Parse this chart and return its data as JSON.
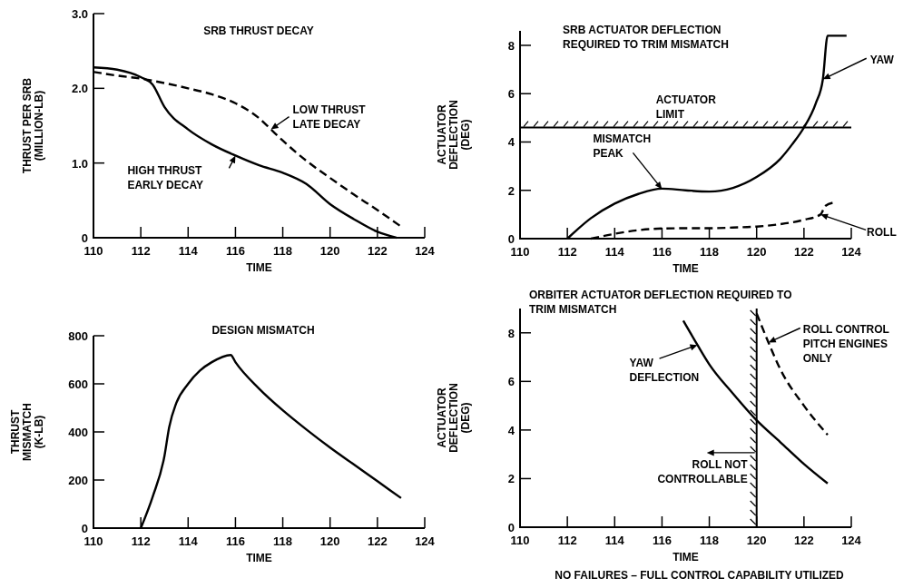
{
  "chart_data": [
    {
      "type": "line",
      "title": "SRB THRUST DECAY",
      "xlabel": "TIME",
      "ylabel": "THRUST PER SRB\n(MILLION-LB)",
      "xlim": [
        110,
        124
      ],
      "xticks": [
        110,
        112,
        114,
        116,
        118,
        120,
        122,
        124
      ],
      "ylim": [
        0,
        3
      ],
      "yticks": [
        0,
        {
          "value": 1,
          "label": "1.0"
        },
        {
          "value": 2,
          "label": "2.0"
        },
        {
          "value": 3,
          "label": "3.0"
        }
      ],
      "series": [
        {
          "name": "HIGH THRUST\nEARLY DECAY",
          "color": "#000000",
          "line_style": "solid",
          "x": [
            110,
            111,
            112,
            112.5,
            113,
            114,
            115,
            116,
            117,
            118,
            119,
            120,
            121,
            122,
            122.8
          ],
          "values": [
            2.28,
            2.25,
            2.15,
            2.05,
            1.75,
            1.45,
            1.25,
            1.1,
            0.97,
            0.87,
            0.72,
            0.45,
            0.25,
            0.08,
            0
          ]
        },
        {
          "name": "LOW THRUST\nLATE DECAY",
          "color": "#000000",
          "line_style": "dashed",
          "x": [
            110,
            111,
            112,
            113,
            114,
            115,
            116,
            117,
            117.5,
            118,
            119,
            120,
            121,
            122,
            123
          ],
          "values": [
            2.22,
            2.17,
            2.13,
            2.07,
            2.0,
            1.92,
            1.8,
            1.6,
            1.45,
            1.3,
            1.03,
            0.8,
            0.58,
            0.37,
            0.15
          ]
        }
      ]
    },
    {
      "type": "line",
      "title": "SRB ACTUATOR DEFLECTION\nREQUIRED TO TRIM MISMATCH",
      "xlabel": "TIME",
      "ylabel": "ACTUATOR\nDEFLECTION\n(DEG)",
      "xlim": [
        110,
        124
      ],
      "xticks": [
        110,
        112,
        114,
        116,
        118,
        120,
        122,
        124
      ],
      "ylim": [
        0,
        8.6
      ],
      "yticks": [
        0,
        2,
        4,
        6,
        8
      ],
      "series": [
        {
          "name": "YAW",
          "color": "#000000",
          "line_style": "solid",
          "x": [
            112,
            113,
            114,
            115,
            116,
            117,
            118,
            119,
            120,
            121,
            121.5,
            122,
            122.5,
            122.8,
            123,
            123.8
          ],
          "values": [
            0,
            0.85,
            1.45,
            1.85,
            2.07,
            2.0,
            1.95,
            2.1,
            2.55,
            3.3,
            3.9,
            4.6,
            5.6,
            6.6,
            8.4,
            8.4
          ]
        },
        {
          "name": "ROLL",
          "color": "#000000",
          "line_style": "dashed",
          "x": [
            113,
            114,
            115,
            116,
            117,
            118,
            119,
            120,
            121,
            122,
            122.7,
            122.9,
            123.3
          ],
          "values": [
            0,
            0.2,
            0.35,
            0.42,
            0.43,
            0.43,
            0.46,
            0.5,
            0.6,
            0.78,
            1.0,
            1.35,
            1.5
          ]
        }
      ],
      "annotations": [
        {
          "text": "MISMATCH\nPEAK",
          "x": 116,
          "y": 2.05
        }
      ],
      "ref_lines": [
        {
          "axis": "y",
          "value": 4.6,
          "label": "ACTUATOR\nLIMIT"
        }
      ]
    },
    {
      "type": "line",
      "title": "DESIGN MISMATCH",
      "xlabel": "TIME",
      "ylabel": "THRUST\nMISMATCH\n(K-LB)",
      "xlim": [
        110,
        124
      ],
      "xticks": [
        110,
        112,
        114,
        116,
        118,
        120,
        122,
        124
      ],
      "ylim": [
        0,
        800
      ],
      "yticks": [
        0,
        200,
        400,
        600,
        800
      ],
      "series": [
        {
          "color": "#000000",
          "line_style": "solid",
          "x": [
            112,
            112.5,
            113,
            113.2,
            113.5,
            114,
            114.5,
            115,
            115.8,
            116,
            117,
            118,
            119,
            120,
            121,
            122,
            123
          ],
          "values": [
            0,
            130,
            300,
            420,
            520,
            600,
            655,
            690,
            720,
            690,
            580,
            490,
            410,
            335,
            265,
            195,
            125
          ]
        }
      ]
    },
    {
      "type": "line",
      "title": "ORBITER ACTUATOR DEFLECTION REQUIRED TO\nTRIM MISMATCH",
      "xlabel": "TIME",
      "ylabel": "ACTUATOR\nDEFLECTION\n(DEG)",
      "xlim": [
        110,
        124
      ],
      "xticks": [
        110,
        112,
        114,
        116,
        118,
        120,
        122,
        124
      ],
      "ylim": [
        0,
        9
      ],
      "yticks": [
        0,
        2,
        4,
        6,
        8
      ],
      "series": [
        {
          "name": "YAW\nDEFLECTION",
          "color": "#000000",
          "line_style": "solid",
          "x": [
            116.9,
            117.5,
            118,
            119,
            120,
            121,
            122,
            123
          ],
          "values": [
            8.5,
            7.5,
            6.7,
            5.5,
            4.4,
            3.5,
            2.6,
            1.8
          ]
        },
        {
          "name": "ROLL CONTROL\nPITCH ENGINES\nONLY",
          "color": "#000000",
          "line_style": "dashed",
          "x": [
            120,
            120.5,
            121,
            122,
            123
          ],
          "values": [
            8.8,
            7.6,
            6.5,
            5.0,
            3.8
          ]
        }
      ],
      "ref_lines": [
        {
          "axis": "x",
          "value": 120,
          "label": "ROLL NOT\nCONTROLLABLE"
        }
      ],
      "annotations": [
        "NO FAILURES – FULL CONTROL CAPABILITY UTILIZED"
      ]
    }
  ]
}
